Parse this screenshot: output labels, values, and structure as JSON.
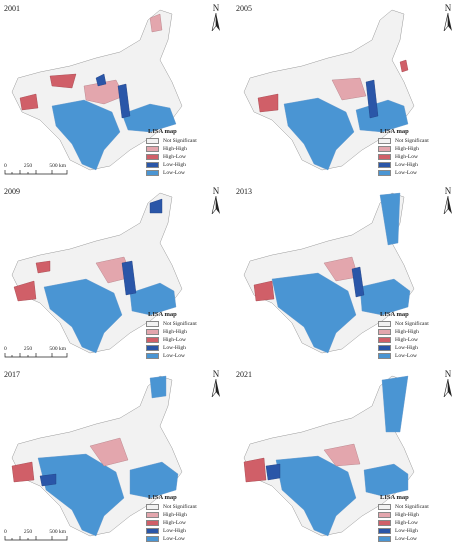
{
  "legend": {
    "title": "LISA map",
    "items": [
      {
        "label": "Not Significant",
        "color": "#f2f2f2"
      },
      {
        "label": "High-High",
        "color": "#e3a6ad"
      },
      {
        "label": "High-Low",
        "color": "#d05f68"
      },
      {
        "label": "Low-High",
        "color": "#2a56a8"
      },
      {
        "label": "Low-Low",
        "color": "#4a95d3"
      }
    ]
  },
  "north_label": "N",
  "scale": {
    "ticks": [
      "0",
      "250",
      "500 km"
    ]
  },
  "panels": [
    {
      "year": "2001"
    },
    {
      "year": "2005"
    },
    {
      "year": "2009"
    },
    {
      "year": "2013"
    },
    {
      "year": "2017"
    },
    {
      "year": "2021"
    }
  ]
}
